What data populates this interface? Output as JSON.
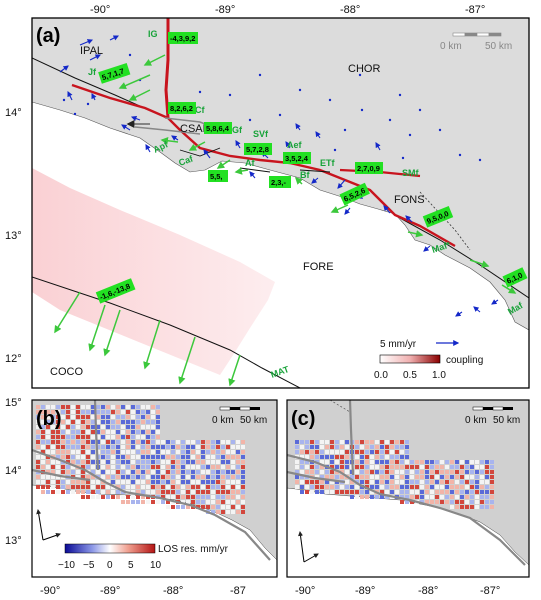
{
  "panels": {
    "a": "(a)",
    "b": "(b)",
    "c": "(c)"
  },
  "top_ticks": [
    "-90°",
    "-89°",
    "-88°",
    "-87°"
  ],
  "left_ticks_a": [
    "14°",
    "13°",
    "12°"
  ],
  "left_ticks_bc": [
    "15°",
    "14°",
    "13°"
  ],
  "bottom_ticks_b": [
    "-90°",
    "-89°",
    "-88°",
    "-87"
  ],
  "bottom_ticks_c": [
    "-90°",
    "-89°",
    "-88°",
    "-87°"
  ],
  "regions": {
    "ipal": "IPAL",
    "chor": "CHOR",
    "csal": "CSAL",
    "fons": "FONS",
    "fore": "FORE",
    "coco": "COCO"
  },
  "faults": {
    "ig": "IG",
    "jf": "Jf",
    "cf": "Cf",
    "gf": "Gf",
    "svf": "SVf",
    "aef": "Aef",
    "etf": "ETf",
    "smf": "SMf",
    "apf": "Apf",
    "caf": "Caf",
    "af": "Af",
    "bf": "Bf",
    "maf_star": "Maf*",
    "maf": "Maf",
    "mat": "MAT"
  },
  "rates": {
    "ig": "-4,3,9,2",
    "jf": "5,7,1,7",
    "cf": "8,2,6,2",
    "gf": "5,8,6,4",
    "svf": "5,7,2,8",
    "aef": "3,5,2,4",
    "smf": "2,7,0,9",
    "af": "5,5,",
    "bf": "2,3,-",
    "et": "6,5,2,6",
    "maf_star": "9,5,0,0",
    "maf": "6,1,0",
    "mat": "-1,6,-13,8"
  },
  "scale_bar": {
    "zero": "0 km",
    "fifty": "50 km"
  },
  "velocity_legend": "5 mm/yr",
  "coupling_legend": {
    "label": "coupling",
    "ticks": [
      "0.0",
      "0.5",
      "1.0"
    ]
  },
  "los_legend": {
    "label": "LOS res. mm/yr",
    "ticks": [
      "−10",
      "−5",
      "0",
      "5",
      "10"
    ]
  },
  "colors": {
    "land": "#dcdcdc",
    "sea": "#ffffff",
    "fault_major": "#c8141e",
    "vector_blue": "#1428c8",
    "vector_green": "#3cc83c",
    "label_box": "#22e022"
  }
}
